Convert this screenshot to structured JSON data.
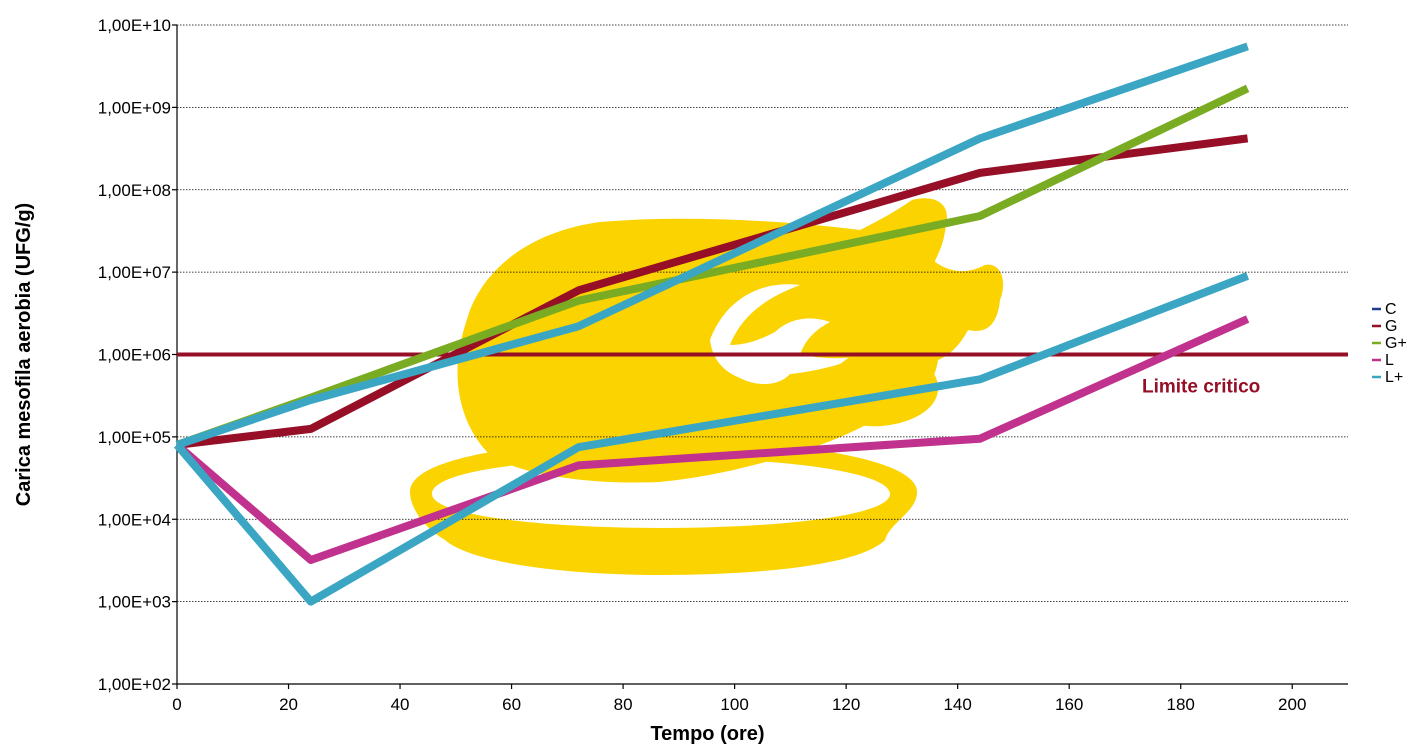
{
  "chart_data": {
    "type": "line",
    "title": "",
    "xlabel": "Tempo (ore)",
    "ylabel": "Carica mesofila aerobia (UFG/g)",
    "x_ticks": [
      0,
      20,
      40,
      60,
      80,
      100,
      120,
      140,
      160,
      180,
      200
    ],
    "xlim": [
      0,
      210
    ],
    "y_scale": "log",
    "ylim": [
      100,
      10000000000
    ],
    "y_tick_values": [
      100,
      1000,
      10000,
      100000,
      1000000,
      10000000,
      100000000,
      1000000000,
      10000000000
    ],
    "y_tick_labels": [
      "1,00E+02",
      "1,00E+03",
      "1,00E+04",
      "1,00E+05",
      "1,00E+06",
      "1,00E+07",
      "1,00E+08",
      "1,00E+09",
      "1,00E+10"
    ],
    "grid": "horizontal dotted",
    "legend_position": "right",
    "series": [
      {
        "name": "C",
        "color": "#1f3d8c",
        "x": [],
        "y": []
      },
      {
        "name": "G",
        "color": "#960f26",
        "x": [
          0,
          24,
          72,
          144,
          192
        ],
        "y": [
          80000,
          125000,
          6000000,
          160000000,
          420000000
        ]
      },
      {
        "name": "G+",
        "color": "#7aac23",
        "x": [
          0,
          24,
          72,
          144,
          192
        ],
        "y": [
          80000,
          300000,
          4500000,
          48000000,
          1700000000
        ]
      },
      {
        "name": "L",
        "color": "#c0328d",
        "x": [
          0,
          24,
          72,
          144,
          192
        ],
        "y": [
          80000,
          3200,
          45000,
          95000,
          2700000
        ]
      },
      {
        "name": "L+",
        "color": "#3ba6c4",
        "x": [
          0,
          24,
          72,
          144,
          192
        ],
        "y": [
          80000,
          1000,
          75000,
          500000,
          9000000
        ]
      },
      {
        "name": "L+",
        "color": "#3ba6c4",
        "x": [
          0,
          24,
          72,
          144,
          192
        ],
        "y": [
          80000,
          280000,
          2200000,
          420000000,
          5500000000
        ]
      }
    ],
    "reference_line": {
      "y": 1000000,
      "label": "Limite critico",
      "color": "#960f26"
    },
    "background_illustration": "roast-chicken-on-plate",
    "illustration_color": "#fbd300"
  }
}
